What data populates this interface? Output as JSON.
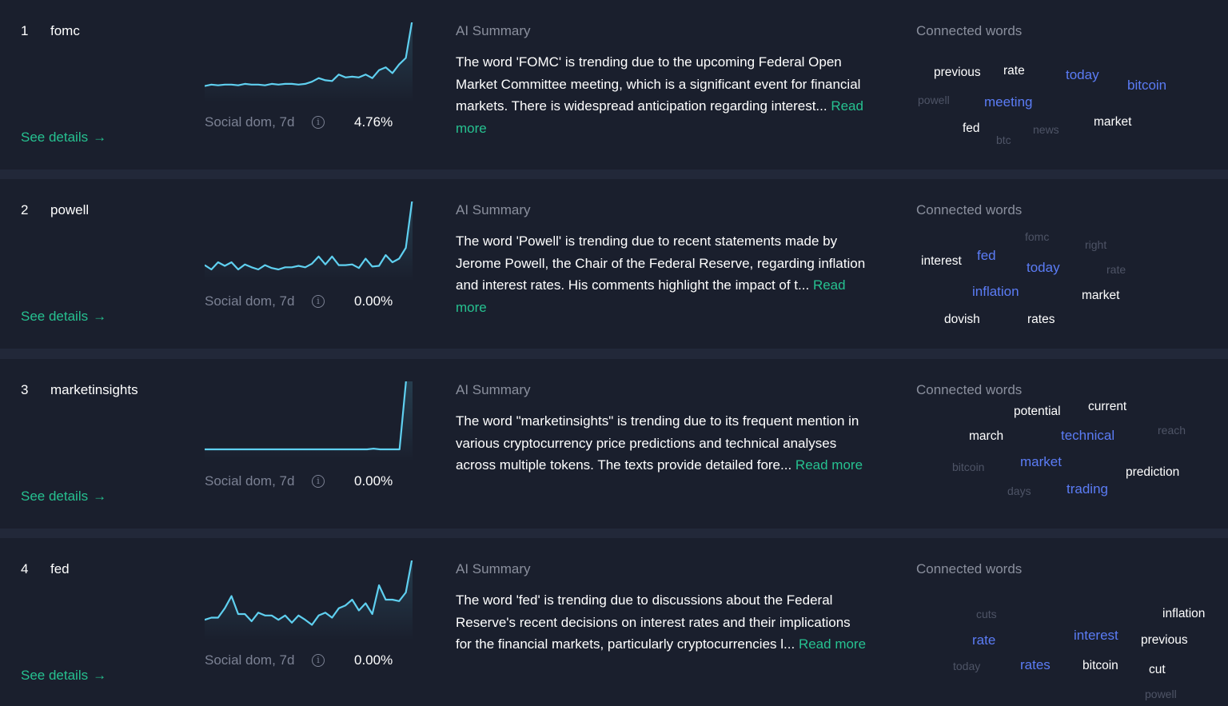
{
  "labels": {
    "see_details": "See details",
    "social_dom": "Social dom, 7d",
    "ai_summary": "AI Summary",
    "connected_words": "Connected words",
    "read_more": "Read more"
  },
  "colors": {
    "background": "#1a1f2d",
    "separator": "#222839",
    "accent_green": "#26c190",
    "sparkline": "#5fd0f0",
    "word_highlight": "#5b7cf5",
    "muted_text": "#8a8f9d"
  },
  "icons": {
    "info": "info-circle-icon",
    "arrow": "arrow-right-icon"
  },
  "rows": [
    {
      "rank": "1",
      "word": "fomc",
      "social_dom_value": "4.76%",
      "summary": "The word 'FOMC' is trending due to the upcoming Federal Open Market Committee meeting, which is a significant event for financial markets. There is widespread anticipation regarding interest...",
      "sparkline": [
        0.06,
        0.08,
        0.07,
        0.08,
        0.08,
        0.07,
        0.09,
        0.08,
        0.08,
        0.07,
        0.09,
        0.08,
        0.09,
        0.09,
        0.08,
        0.09,
        0.12,
        0.17,
        0.14,
        0.13,
        0.22,
        0.18,
        0.19,
        0.18,
        0.22,
        0.17,
        0.28,
        0.32,
        0.24,
        0.36,
        0.45,
        1.0
      ],
      "connected_words": [
        {
          "text": "previous",
          "tier": "mid"
        },
        {
          "text": "rate",
          "tier": "mid"
        },
        {
          "text": "today",
          "tier": "hi"
        },
        {
          "text": "bitcoin",
          "tier": "hi"
        },
        {
          "text": "powell",
          "tier": "lo"
        },
        {
          "text": "meeting",
          "tier": "hi"
        },
        {
          "text": "fed",
          "tier": "mid"
        },
        {
          "text": "news",
          "tier": "lo"
        },
        {
          "text": "market",
          "tier": "mid"
        },
        {
          "text": "btc",
          "tier": "lo"
        }
      ]
    },
    {
      "rank": "2",
      "word": "powell",
      "social_dom_value": "0.00%",
      "summary": "The word 'Powell' is trending due to recent statements made by Jerome Powell, the Chair of the Federal Reserve, regarding inflation and interest rates. His comments highlight the impact of t...",
      "sparkline": [
        0.06,
        0.0,
        0.1,
        0.05,
        0.1,
        0.0,
        0.07,
        0.03,
        0.0,
        0.06,
        0.02,
        0.0,
        0.03,
        0.03,
        0.05,
        0.03,
        0.08,
        0.18,
        0.07,
        0.18,
        0.06,
        0.06,
        0.07,
        0.02,
        0.15,
        0.04,
        0.05,
        0.2,
        0.1,
        0.15,
        0.3,
        1.0
      ],
      "connected_words": [
        {
          "text": "fomc",
          "tier": "lo"
        },
        {
          "text": "right",
          "tier": "lo"
        },
        {
          "text": "interest",
          "tier": "mid"
        },
        {
          "text": "fed",
          "tier": "hi"
        },
        {
          "text": "today",
          "tier": "hi"
        },
        {
          "text": "rate",
          "tier": "lo"
        },
        {
          "text": "inflation",
          "tier": "hi"
        },
        {
          "text": "market",
          "tier": "mid"
        },
        {
          "text": "dovish",
          "tier": "mid"
        },
        {
          "text": "rates",
          "tier": "mid"
        }
      ]
    },
    {
      "rank": "3",
      "word": "marketinsights",
      "social_dom_value": "0.00%",
      "summary": "The word \"marketinsights\" is trending due to its frequent mention in various cryptocurrency price predictions and technical analyses across multiple tokens. The texts provide detailed fore...",
      "sparkline": [
        0.0,
        0.0,
        0.0,
        0.0,
        0.0,
        0.0,
        0.0,
        0.0,
        0.0,
        0.0,
        0.0,
        0.0,
        0.0,
        0.0,
        0.0,
        0.0,
        0.0,
        0.0,
        0.0,
        0.0,
        0.0,
        0.0,
        0.0,
        0.0,
        0.0,
        0.0,
        0.01,
        0.0,
        0.0,
        0.0,
        0.0,
        0.95,
        1.0
      ],
      "connected_words": [
        {
          "text": "potential",
          "tier": "mid"
        },
        {
          "text": "current",
          "tier": "mid"
        },
        {
          "text": "march",
          "tier": "mid"
        },
        {
          "text": "technical",
          "tier": "hi"
        },
        {
          "text": "reach",
          "tier": "lo"
        },
        {
          "text": "bitcoin",
          "tier": "lo"
        },
        {
          "text": "market",
          "tier": "hi"
        },
        {
          "text": "prediction",
          "tier": "mid"
        },
        {
          "text": "days",
          "tier": "lo"
        },
        {
          "text": "trading",
          "tier": "hi"
        }
      ]
    },
    {
      "rank": "4",
      "word": "fed",
      "social_dom_value": "0.00%",
      "summary": "The word 'fed' is trending due to discussions about the Federal Reserve's recent decisions on interest rates and their implications for the financial markets, particularly cryptocurrencies l...",
      "sparkline": [
        0.12,
        0.15,
        0.15,
        0.28,
        0.45,
        0.2,
        0.2,
        0.1,
        0.22,
        0.18,
        0.18,
        0.12,
        0.18,
        0.08,
        0.18,
        0.12,
        0.05,
        0.18,
        0.22,
        0.15,
        0.28,
        0.32,
        0.4,
        0.25,
        0.35,
        0.2,
        0.6,
        0.4,
        0.4,
        0.38,
        0.5,
        1.0
      ],
      "connected_words": [
        {
          "text": "cuts",
          "tier": "lo"
        },
        {
          "text": "inflation",
          "tier": "mid"
        },
        {
          "text": "rate",
          "tier": "hi"
        },
        {
          "text": "interest",
          "tier": "hi"
        },
        {
          "text": "previous",
          "tier": "mid"
        },
        {
          "text": "today",
          "tier": "lo"
        },
        {
          "text": "rates",
          "tier": "hi"
        },
        {
          "text": "bitcoin",
          "tier": "mid"
        },
        {
          "text": "cut",
          "tier": "mid"
        },
        {
          "text": "powell",
          "tier": "lo"
        }
      ]
    }
  ]
}
